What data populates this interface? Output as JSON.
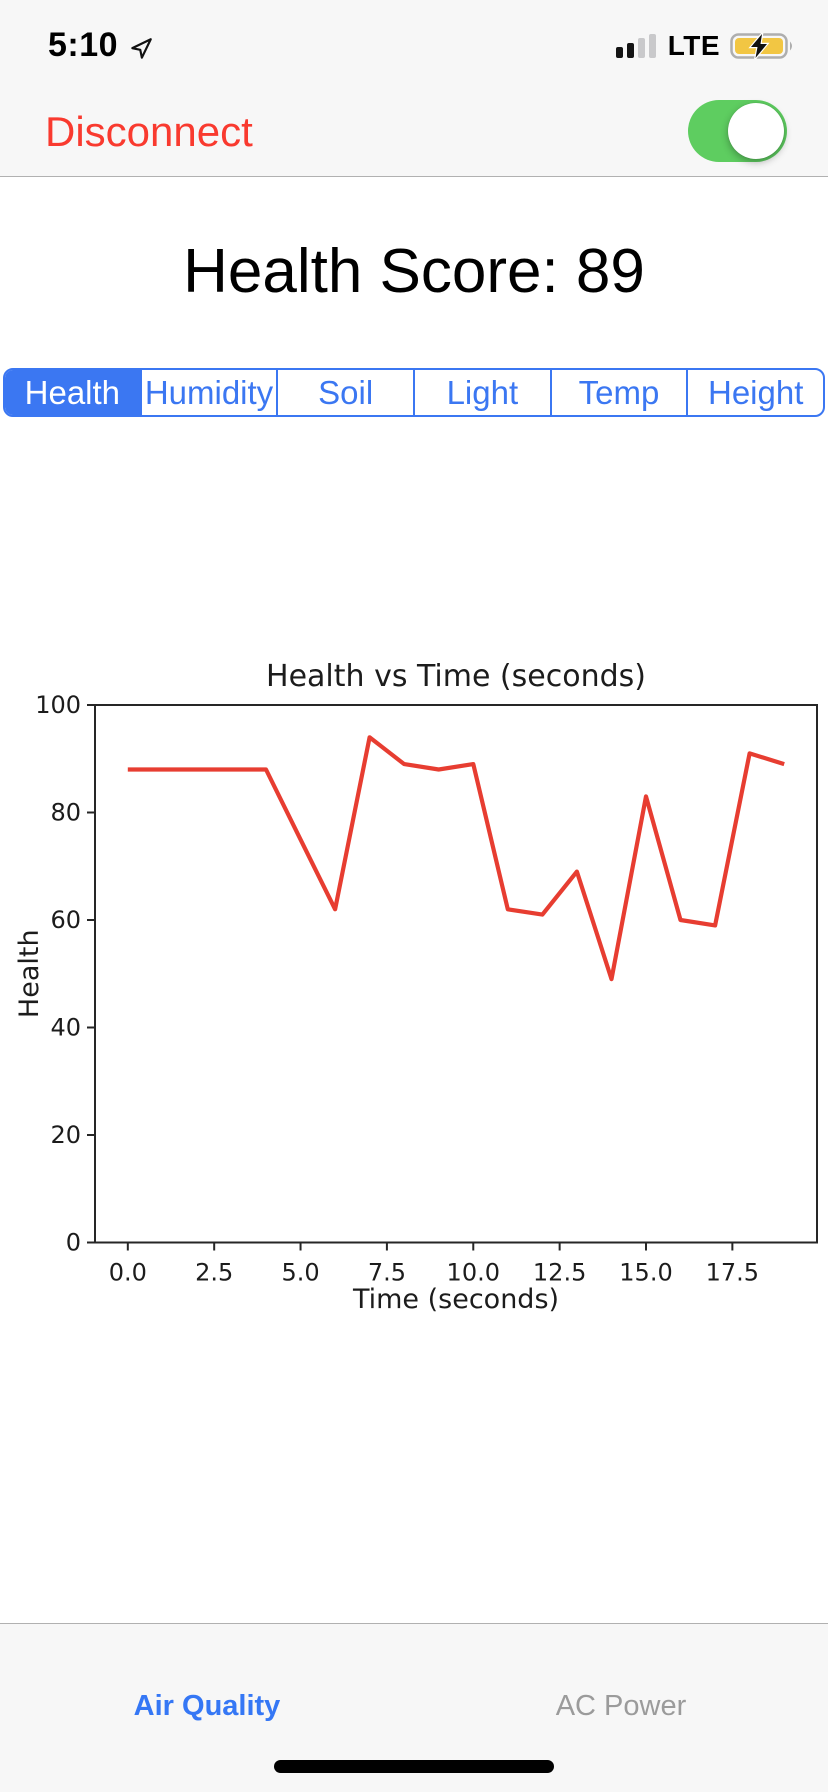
{
  "status_bar": {
    "time": "5:10",
    "network": "LTE",
    "icons": [
      "location-arrow-icon",
      "signal-strength-icon",
      "battery-charging-icon"
    ],
    "signal_bars_active": 2,
    "signal_bars_total": 4,
    "battery_state": "charging-low-power"
  },
  "header": {
    "disconnect_label": "Disconnect",
    "connection_toggle_on": true
  },
  "main": {
    "title": "Health Score: 89",
    "health_score": 89
  },
  "tabs": [
    {
      "label": "Health",
      "selected": true
    },
    {
      "label": "Humidity",
      "selected": false
    },
    {
      "label": "Soil",
      "selected": false
    },
    {
      "label": "Light",
      "selected": false
    },
    {
      "label": "Temp",
      "selected": false
    },
    {
      "label": "Height",
      "selected": false
    }
  ],
  "chart_data": {
    "type": "line",
    "title": "Health vs Time (seconds)",
    "xlabel": "Time (seconds)",
    "ylabel": "Health",
    "x": [
      0,
      1,
      2,
      3,
      4,
      5,
      6,
      7,
      8,
      9,
      10,
      11,
      12,
      13,
      14,
      15,
      16,
      17,
      18,
      19
    ],
    "y": [
      88,
      88,
      88,
      88,
      88,
      75,
      62,
      94,
      89,
      88,
      89,
      62,
      61,
      69,
      49,
      83,
      60,
      59,
      91,
      89
    ],
    "xlim": [
      -0.95,
      19.95
    ],
    "ylim": [
      0,
      100
    ],
    "xticks": [
      0,
      2.5,
      5,
      7.5,
      10,
      12.5,
      15,
      17.5
    ],
    "yticks": [
      0,
      20,
      40,
      60,
      80,
      100
    ],
    "grid": false,
    "legend_position": "none",
    "line_color": "#e73d31"
  },
  "footer": {
    "left_label": "Air Quality",
    "right_label": "AC Power"
  },
  "colors": {
    "accent_blue": "#3b77f2",
    "disconnect_red": "#f93a2f",
    "toggle_green": "#5ecd60",
    "chart_line_red": "#e73d31",
    "battery_yellow": "#f2c643",
    "footer_link_blue": "#3577f5",
    "footer_disabled_gray": "#9b9b9b",
    "header_bg": "#f7f7f7"
  }
}
